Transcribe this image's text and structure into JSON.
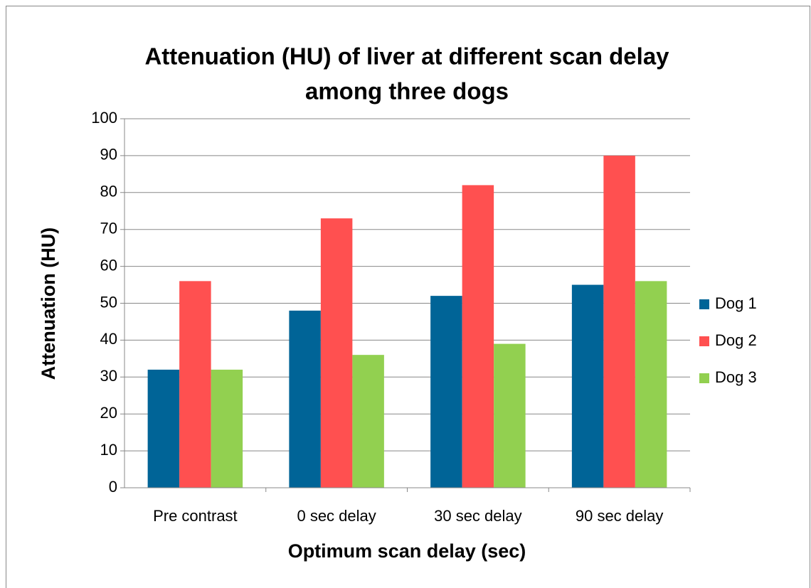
{
  "chart_data": {
    "type": "bar",
    "title": [
      "Attenuation (HU) of liver at different scan delay",
      "among three dogs"
    ],
    "x_label": "Optimum scan delay (sec)",
    "y_label": "Attenuation (HU)",
    "categories": [
      "Pre contrast",
      "0 sec delay",
      "30 sec delay",
      "90 sec delay"
    ],
    "series": [
      {
        "name": "Dog 1",
        "color": "#006497",
        "values": [
          32,
          48,
          52,
          55
        ]
      },
      {
        "name": "Dog 2",
        "color": "#ff5050",
        "values": [
          56,
          73,
          82,
          90
        ]
      },
      {
        "name": "Dog 3",
        "color": "#92d050",
        "values": [
          32,
          36,
          39,
          56
        ]
      }
    ],
    "ylim": [
      0,
      100
    ],
    "yticks": [
      0,
      10,
      20,
      30,
      40,
      50,
      60,
      70,
      80,
      90,
      100
    ],
    "grid": true,
    "legend": "right"
  }
}
